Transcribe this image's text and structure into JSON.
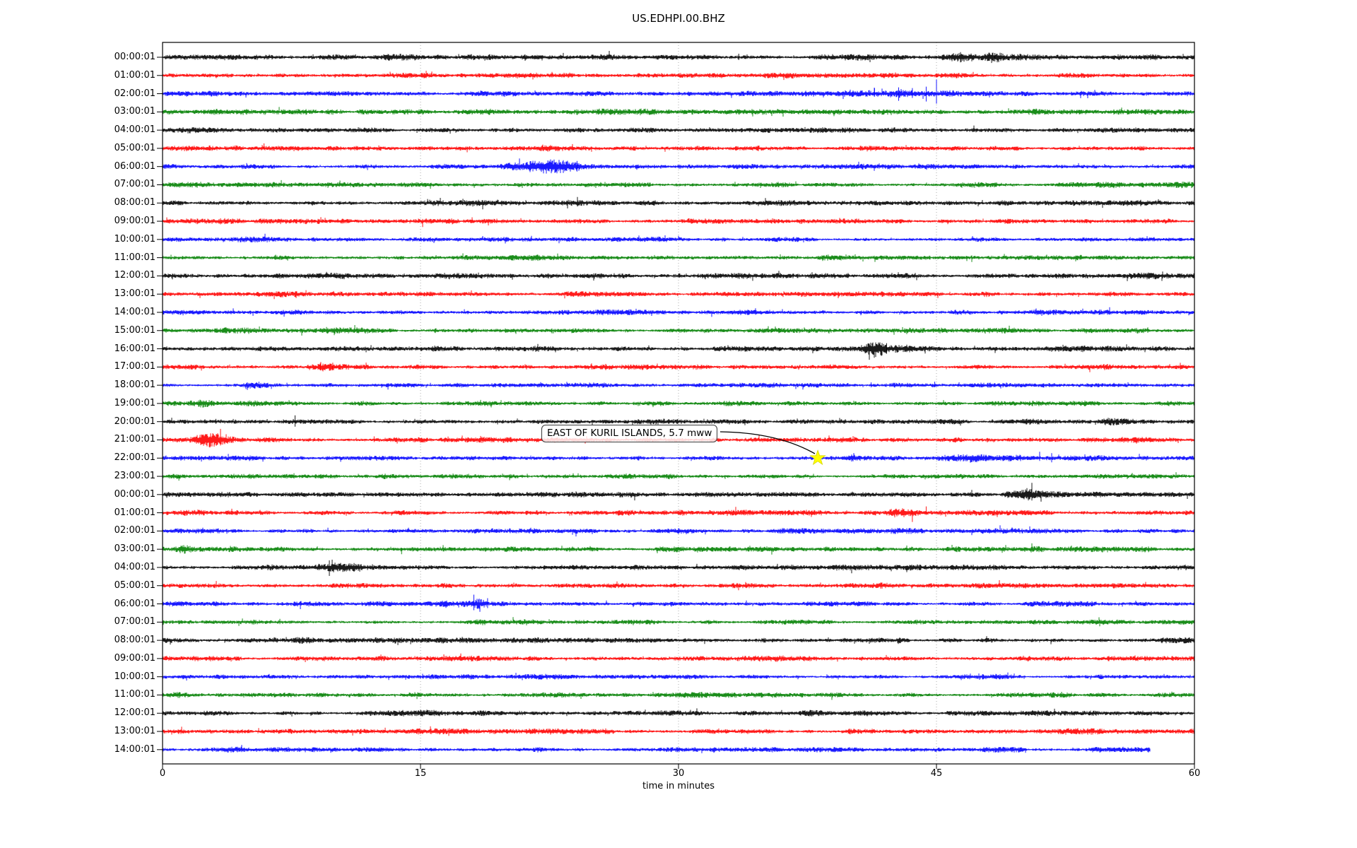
{
  "chart_data": {
    "type": "line",
    "subtype": "seismic-helicorder-dayplot",
    "title": "US.EDHPI.00.BHZ",
    "xlabel": "time in minutes",
    "x_range": [
      0,
      60
    ],
    "x_ticks": [
      0,
      15,
      30,
      45,
      60
    ],
    "gridlines_minutes": [
      15,
      30,
      45
    ],
    "grid_on": true,
    "legend": null,
    "trace_color_cycle": [
      "#000000",
      "#ff0000",
      "#0000ff",
      "#008000"
    ],
    "annotation": {
      "text": "EAST OF KURIL ISLANDS, 5.7 mww",
      "target_row_label": "22:00:01",
      "target_row_index": 22,
      "target_minute": 38.1,
      "marker": "star",
      "marker_color": "#ffff00"
    },
    "rows": [
      {
        "label": "00:00:01",
        "color": "#000000",
        "noise_amp": 3.1,
        "events": [
          {
            "t": 34.6,
            "dur": 0.8,
            "amp": 0.7
          },
          {
            "t": 39.5,
            "dur": 1.4,
            "amp": 0.8
          },
          {
            "t": 46.3,
            "dur": 1.2,
            "amp": 0.7
          },
          {
            "t": 48.4,
            "dur": 0.6,
            "amp": 0.8
          },
          {
            "t": 56.0,
            "dur": 0.9,
            "amp": 0.6
          }
        ],
        "spikes": [
          {
            "t": 33.5,
            "up": 5,
            "dn": 4
          },
          {
            "t": 41.0,
            "up": 4,
            "dn": 4
          },
          {
            "t": 48.4,
            "up": 6,
            "dn": 6
          }
        ]
      },
      {
        "label": "01:00:01",
        "color": "#ff0000",
        "noise_amp": 3.0,
        "events": [],
        "spikes": []
      },
      {
        "label": "02:00:01",
        "color": "#0000ff",
        "noise_amp": 2.8,
        "events": [
          {
            "t": 2.6,
            "dur": 0.6,
            "amp": 0.7
          },
          {
            "t": 40.0,
            "dur": 1.6,
            "amp": 0.7
          },
          {
            "t": 43.6,
            "dur": 2.6,
            "amp": 0.9
          }
        ],
        "spikes": [
          {
            "t": 41.4,
            "up": 8,
            "dn": 4
          },
          {
            "t": 42.8,
            "up": 9,
            "dn": 10
          },
          {
            "t": 43.6,
            "up": 8,
            "dn": 6
          },
          {
            "t": 44.4,
            "up": 10,
            "dn": 11
          },
          {
            "t": 45.0,
            "up": 20,
            "dn": 14
          }
        ]
      },
      {
        "label": "03:00:01",
        "color": "#008000",
        "noise_amp": 3.0,
        "events": [
          {
            "t": 41.9,
            "dur": 1.2,
            "amp": 0.5
          }
        ],
        "spikes": []
      },
      {
        "label": "04:00:01",
        "color": "#000000",
        "noise_amp": 2.9,
        "events": [],
        "spikes": []
      },
      {
        "label": "05:00:01",
        "color": "#ff0000",
        "noise_amp": 2.9,
        "events": [],
        "spikes": [
          {
            "t": 5.9,
            "up": 7,
            "dn": 2
          }
        ]
      },
      {
        "label": "06:00:01",
        "color": "#0000ff",
        "noise_amp": 2.6,
        "events": [
          {
            "t": 20.8,
            "dur": 1.2,
            "amp": 0.9
          },
          {
            "t": 22.9,
            "dur": 1.8,
            "amp": 2.3
          }
        ],
        "spikes": [
          {
            "t": 23.3,
            "up": 9,
            "dn": 9
          },
          {
            "t": 24.1,
            "up": 8,
            "dn": 7
          }
        ]
      },
      {
        "label": "07:00:01",
        "color": "#008000",
        "noise_amp": 3.0,
        "events": [],
        "spikes": []
      },
      {
        "label": "08:00:01",
        "color": "#000000",
        "noise_amp": 3.1,
        "events": [],
        "spikes": []
      },
      {
        "label": "09:00:01",
        "color": "#ff0000",
        "noise_amp": 3.0,
        "events": [],
        "spikes": []
      },
      {
        "label": "10:00:01",
        "color": "#0000ff",
        "noise_amp": 2.7,
        "events": [],
        "spikes": []
      },
      {
        "label": "11:00:01",
        "color": "#008000",
        "noise_amp": 2.9,
        "events": [],
        "spikes": []
      },
      {
        "label": "12:00:01",
        "color": "#000000",
        "noise_amp": 3.1,
        "events": [],
        "spikes": []
      },
      {
        "label": "13:00:01",
        "color": "#ff0000",
        "noise_amp": 2.9,
        "events": [],
        "spikes": []
      },
      {
        "label": "14:00:01",
        "color": "#0000ff",
        "noise_amp": 2.7,
        "events": [],
        "spikes": []
      },
      {
        "label": "15:00:01",
        "color": "#008000",
        "noise_amp": 2.9,
        "events": [],
        "spikes": []
      },
      {
        "label": "16:00:01",
        "color": "#000000",
        "noise_amp": 3.0,
        "events": [
          {
            "t": 41.5,
            "dur": 0.9,
            "amp": 2.6
          },
          {
            "t": 42.8,
            "dur": 1.6,
            "amp": 1.4
          }
        ],
        "spikes": [
          {
            "t": 41.3,
            "up": 9,
            "dn": 8
          },
          {
            "t": 42.1,
            "up": 8,
            "dn": 7
          }
        ]
      },
      {
        "label": "17:00:01",
        "color": "#ff0000",
        "noise_amp": 3.0,
        "events": [
          {
            "t": 9.4,
            "dur": 1.1,
            "amp": 1.5
          }
        ],
        "spikes": [
          {
            "t": 9.2,
            "up": 7,
            "dn": 5
          },
          {
            "t": 9.9,
            "up": 6,
            "dn": 4
          }
        ]
      },
      {
        "label": "18:00:01",
        "color": "#0000ff",
        "noise_amp": 2.7,
        "events": [
          {
            "t": 6.0,
            "dur": 1.6,
            "amp": 0.9
          }
        ],
        "spikes": [
          {
            "t": 5.6,
            "up": 5,
            "dn": 4
          },
          {
            "t": 41.2,
            "up": 4,
            "dn": 3
          },
          {
            "t": 44.9,
            "up": 5,
            "dn": 3
          }
        ]
      },
      {
        "label": "19:00:01",
        "color": "#008000",
        "noise_amp": 2.9,
        "events": [
          {
            "t": 2.4,
            "dur": 0.7,
            "amp": 0.7
          },
          {
            "t": 13.7,
            "dur": 0.9,
            "amp": 0.5
          }
        ],
        "spikes": []
      },
      {
        "label": "20:00:01",
        "color": "#000000",
        "noise_amp": 2.9,
        "events": [
          {
            "t": 50.3,
            "dur": 1.1,
            "amp": 0.9
          },
          {
            "t": 55.5,
            "dur": 1.3,
            "amp": 1.1
          }
        ],
        "spikes": [
          {
            "t": 3.1,
            "up": 4,
            "dn": 3
          },
          {
            "t": 7.7,
            "up": 9,
            "dn": 7
          }
        ]
      },
      {
        "label": "21:00:01",
        "color": "#ff0000",
        "noise_amp": 2.9,
        "events": [
          {
            "t": 2.9,
            "dur": 1.5,
            "amp": 1.6
          }
        ],
        "spikes": [
          {
            "t": 3.7,
            "up": 8,
            "dn": 4
          },
          {
            "t": 12.3,
            "up": 5,
            "dn": 3
          }
        ]
      },
      {
        "label": "22:00:01",
        "color": "#0000ff",
        "noise_amp": 2.8,
        "events": [
          {
            "t": 22.2,
            "dur": 0.8,
            "amp": 0.6
          },
          {
            "t": 27.7,
            "dur": 0.6,
            "amp": 0.6
          },
          {
            "t": 40.3,
            "dur": 0.9,
            "amp": 0.7
          },
          {
            "t": 48.5,
            "dur": 5.5,
            "amp": 0.8
          }
        ],
        "spikes": [
          {
            "t": 51.0,
            "up": 9,
            "dn": 4
          },
          {
            "t": 51.7,
            "up": 7,
            "dn": 6
          }
        ]
      },
      {
        "label": "23:00:01",
        "color": "#008000",
        "noise_amp": 2.8,
        "events": [],
        "spikes": [
          {
            "t": 0.95,
            "up": 1,
            "dn": 6
          }
        ]
      },
      {
        "label": "00:00:01",
        "color": "#000000",
        "noise_amp": 3.0,
        "events": [
          {
            "t": 27.3,
            "dur": 0.5,
            "amp": 0.5
          },
          {
            "t": 50.2,
            "dur": 1.4,
            "amp": 1.4
          }
        ],
        "spikes": []
      },
      {
        "label": "01:00:01",
        "color": "#ff0000",
        "noise_amp": 3.0,
        "events": [
          {
            "t": 42.9,
            "dur": 1.3,
            "amp": 0.9
          }
        ],
        "spikes": [
          {
            "t": 43.6,
            "up": 3,
            "dn": 13
          },
          {
            "t": 44.4,
            "up": 9,
            "dn": 3
          }
        ]
      },
      {
        "label": "02:00:01",
        "color": "#0000ff",
        "noise_amp": 2.7,
        "events": [
          {
            "t": 48.2,
            "dur": 0.9,
            "amp": 0.7
          }
        ],
        "spikes": [
          {
            "t": 48.7,
            "up": 8,
            "dn": 3
          }
        ]
      },
      {
        "label": "03:00:01",
        "color": "#008000",
        "noise_amp": 2.9,
        "events": [
          {
            "t": 1.5,
            "dur": 1.3,
            "amp": 1.4
          },
          {
            "t": 3.1,
            "dur": 1.6,
            "amp": 1.1
          }
        ],
        "spikes": [
          {
            "t": 13.9,
            "up": 1,
            "dn": 7
          }
        ]
      },
      {
        "label": "04:00:01",
        "color": "#000000",
        "noise_amp": 2.9,
        "events": [
          {
            "t": 9.7,
            "dur": 1.0,
            "amp": 2.0
          },
          {
            "t": 11.1,
            "dur": 0.9,
            "amp": 1.1
          }
        ],
        "spikes": [
          {
            "t": 9.7,
            "up": 10,
            "dn": 12
          }
        ]
      },
      {
        "label": "05:00:01",
        "color": "#ff0000",
        "noise_amp": 2.9,
        "events": [],
        "spikes": []
      },
      {
        "label": "06:00:01",
        "color": "#0000ff",
        "noise_amp": 2.7,
        "events": [
          {
            "t": 16.6,
            "dur": 1.1,
            "amp": 0.8
          },
          {
            "t": 18.3,
            "dur": 1.6,
            "amp": 1.7
          }
        ],
        "spikes": [
          {
            "t": 18.1,
            "up": 13,
            "dn": 9
          },
          {
            "t": 18.9,
            "up": 8,
            "dn": 6
          }
        ]
      },
      {
        "label": "07:00:01",
        "color": "#008000",
        "noise_amp": 2.9,
        "events": [],
        "spikes": []
      },
      {
        "label": "08:00:01",
        "color": "#000000",
        "noise_amp": 3.1,
        "events": [],
        "spikes": []
      },
      {
        "label": "09:00:01",
        "color": "#ff0000",
        "noise_amp": 3.0,
        "events": [],
        "spikes": []
      },
      {
        "label": "10:00:01",
        "color": "#0000ff",
        "noise_amp": 2.7,
        "events": [],
        "spikes": [
          {
            "t": 6.2,
            "up": 4,
            "dn": 2
          }
        ]
      },
      {
        "label": "11:00:01",
        "color": "#008000",
        "noise_amp": 2.9,
        "events": [],
        "spikes": []
      },
      {
        "label": "12:00:01",
        "color": "#000000",
        "noise_amp": 3.1,
        "events": [],
        "spikes": []
      },
      {
        "label": "13:00:01",
        "color": "#ff0000",
        "noise_amp": 2.9,
        "events": [],
        "spikes": []
      },
      {
        "label": "14:00:01",
        "color": "#0000ff",
        "noise_amp": 2.7,
        "events": [],
        "spikes": [],
        "end_minute": 57.4
      }
    ]
  }
}
